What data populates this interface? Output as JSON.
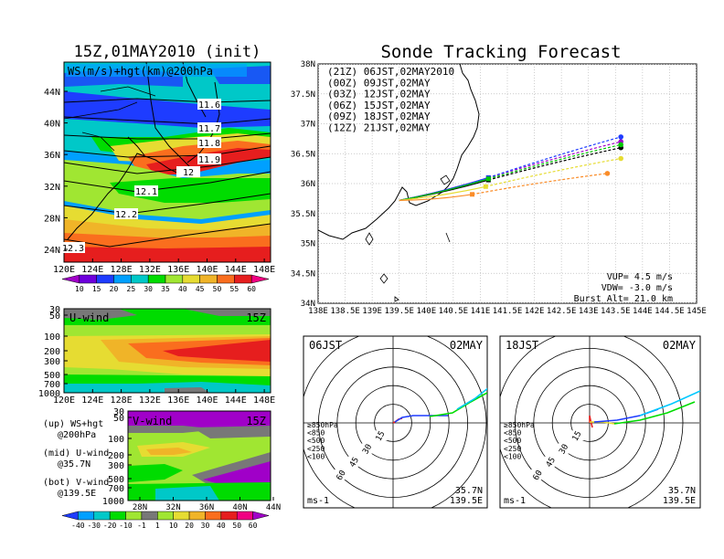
{
  "left": {
    "title": "15Z,01MAY2010 (init)",
    "panel1": {
      "label": "WS(m/s)+hgt(km)@200hPa",
      "lat_ticks": [
        "44N",
        "40N",
        "36N",
        "32N",
        "28N",
        "24N"
      ],
      "lon_ticks": [
        "120E",
        "124E",
        "128E",
        "132E",
        "136E",
        "140E",
        "144E",
        "148E"
      ],
      "contours": [
        "11.6",
        "11.7",
        "11.8",
        "11.9",
        "12",
        "12.1",
        "12.2",
        "12.3"
      ]
    },
    "colorbar1": {
      "labels": [
        "10",
        "15",
        "20",
        "25",
        "30",
        "35",
        "40",
        "45",
        "50",
        "55",
        "60"
      ],
      "colors": [
        "#a000c8",
        "#6e00dc",
        "#1e3cff",
        "#00a0ff",
        "#00c8c8",
        "#00dc00",
        "#a0e632",
        "#e6dc32",
        "#f0b428",
        "#fa6e1e",
        "#e61e1e",
        "#f00082"
      ]
    },
    "panel2": {
      "label": "U-wind",
      "time": "15Z",
      "p_ticks": [
        "30",
        "50",
        "100",
        "200",
        "300",
        "500",
        "700",
        "1000"
      ],
      "lon_ticks": [
        "120E",
        "124E",
        "128E",
        "132E",
        "136E",
        "140E",
        "144E",
        "148E"
      ]
    },
    "panel3": {
      "label": "V-wind",
      "time": "15Z",
      "p_ticks": [
        "30",
        "50",
        "100",
        "200",
        "300",
        "500",
        "700",
        "1000"
      ],
      "lat_ticks": [
        "28N",
        "32N",
        "36N",
        "40N",
        "44N"
      ]
    },
    "legend": {
      "line1a": "(up) WS+hgt",
      "line1b": "@200hPa",
      "line2a": "(mid) U-wind",
      "line2b": "@35.7N",
      "line3a": "(bot) V-wind",
      "line3b": "@139.5E"
    },
    "colorbar2": {
      "labels": [
        "-40",
        "-30",
        "-20",
        "-10",
        "-1",
        "1",
        "10",
        "20",
        "30",
        "40",
        "50",
        "60"
      ],
      "colors": [
        "#1e3cff",
        "#00a0ff",
        "#00c8c8",
        "#00dc00",
        "#a0e632",
        "#787878",
        "#a0e632",
        "#e6dc32",
        "#f0b428",
        "#fa6e1e",
        "#e61e1e",
        "#f00082",
        "#a000c8"
      ]
    }
  },
  "right": {
    "title": "Sonde Tracking Forecast",
    "lat_ticks": [
      "38N",
      "37.5N",
      "37N",
      "36.5N",
      "36N",
      "35.5N",
      "35N",
      "34.5N",
      "34N"
    ],
    "lon_ticks": [
      "138E",
      "138.5E",
      "139E",
      "139.5E",
      "140E",
      "140.5E",
      "141E",
      "141.5E",
      "142E",
      "142.5E",
      "143E",
      "143.5E",
      "144E",
      "144.5E",
      "145E"
    ],
    "info": {
      "vup": "VUP= 4.5 m/s",
      "vdw": "VDW= -3.0 m/s",
      "burst": "Burst Alt= 21.0 km"
    },
    "polar1": {
      "time": "06JST",
      "date": "02MAY",
      "loc_lat": "35.7N",
      "loc_lon": "139.5E",
      "unit": "ms-1"
    },
    "polar2": {
      "time": "18JST",
      "date": "02MAY",
      "loc_lat": "35.7N",
      "loc_lon": "139.5E",
      "unit": "ms-1"
    },
    "polar_legend": [
      "≥850hPa",
      "<850",
      "<500",
      "<250",
      "<100"
    ],
    "polar_legend_colors": [
      "#e61e1e",
      "#f0b428",
      "#00c800",
      "#00c8ff",
      "#1e3cff"
    ],
    "rings": [
      "15",
      "30",
      "45",
      "60"
    ]
  },
  "chart_data": [
    {
      "type": "line",
      "title": "Sonde Tracking Forecast",
      "xlim": [
        138,
        145
      ],
      "ylim": [
        34,
        38
      ],
      "origin": [
        139.5,
        35.72
      ],
      "series": [
        {
          "name": "(21Z) 06JST,02MAY2010",
          "color": "#000000",
          "burst": [
            141.15,
            36.06
          ],
          "land": [
            143.6,
            36.6
          ]
        },
        {
          "name": "(00Z) 09JST,02MAY",
          "color": "#a000c8",
          "burst": [
            141.15,
            36.1
          ],
          "land": [
            143.6,
            36.7
          ]
        },
        {
          "name": "(03Z) 12JST,02MAY",
          "color": "#1e3cff",
          "burst": [
            141.15,
            36.1
          ],
          "land": [
            143.6,
            36.78
          ]
        },
        {
          "name": "(06Z) 15JST,02MAY",
          "color": "#00c800",
          "burst": [
            141.15,
            36.08
          ],
          "land": [
            143.6,
            36.65
          ]
        },
        {
          "name": "(09Z) 18JST,02MAY",
          "color": "#e6dc32",
          "burst": [
            141.1,
            35.95
          ],
          "land": [
            143.6,
            36.42
          ]
        },
        {
          "name": "(12Z) 21JST,02MAY",
          "color": "#fa8c28",
          "burst": [
            140.85,
            35.82
          ],
          "land": [
            143.35,
            36.17
          ]
        }
      ]
    }
  ]
}
